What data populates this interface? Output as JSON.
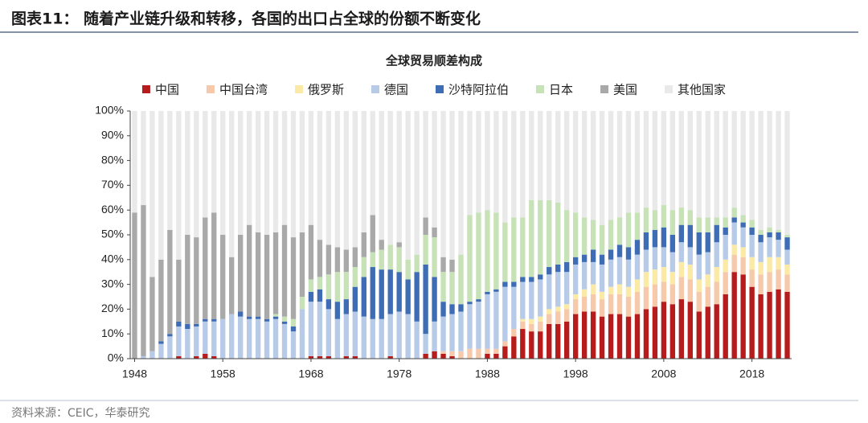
{
  "figure_title": "图表11：  随着产业链升级和转移，各国的出口占全球的份额不断变化",
  "source": "资料来源：CEIC，华泰研究",
  "chart_data": {
    "type": "stacked-bar",
    "title": "全球贸易顺差构成",
    "x": [
      1948,
      1949,
      1950,
      1951,
      1952,
      1953,
      1954,
      1955,
      1956,
      1957,
      1958,
      1959,
      1960,
      1961,
      1962,
      1963,
      1964,
      1965,
      1966,
      1967,
      1968,
      1969,
      1970,
      1971,
      1972,
      1973,
      1974,
      1975,
      1976,
      1977,
      1978,
      1979,
      1980,
      1981,
      1982,
      1983,
      1984,
      1985,
      1986,
      1987,
      1988,
      1989,
      1990,
      1991,
      1992,
      1993,
      1994,
      1995,
      1996,
      1997,
      1998,
      1999,
      2000,
      2001,
      2002,
      2003,
      2004,
      2005,
      2006,
      2007,
      2008,
      2009,
      2010,
      2011,
      2012,
      2013,
      2014,
      2015,
      2016,
      2017,
      2018,
      2019,
      2020,
      2021,
      2022
    ],
    "xlim": [
      1947.5,
      2022.5
    ],
    "xticks": [
      1948,
      1958,
      1968,
      1978,
      1988,
      1998,
      2008,
      2018
    ],
    "ylim": [
      0,
      100
    ],
    "yticks": [
      {
        "value": 0,
        "label": "0%"
      },
      {
        "value": 10,
        "label": "10%"
      },
      {
        "value": 20,
        "label": "20%"
      },
      {
        "value": 30,
        "label": "30%"
      },
      {
        "value": 40,
        "label": "40%"
      },
      {
        "value": 50,
        "label": "50%"
      },
      {
        "value": 60,
        "label": "60%"
      },
      {
        "value": 70,
        "label": "70%"
      },
      {
        "value": 80,
        "label": "80%"
      },
      {
        "value": 90,
        "label": "90%"
      },
      {
        "value": 100,
        "label": "100%"
      }
    ],
    "series": [
      {
        "name": "中国",
        "color": "#b71c1c",
        "values": [
          0,
          0,
          0,
          0,
          0,
          1,
          0,
          1,
          2,
          1,
          0,
          0,
          0,
          0,
          0,
          0,
          0,
          0,
          0,
          0,
          1,
          1,
          1,
          0,
          1,
          1,
          0,
          0,
          0,
          1,
          0,
          0,
          0,
          2,
          3,
          2,
          1,
          0,
          0,
          0,
          2,
          2,
          5,
          9,
          12,
          11,
          11,
          14,
          14,
          15,
          18,
          19,
          19,
          17,
          18,
          18,
          17,
          18,
          20,
          21,
          23,
          22,
          24,
          23,
          19,
          21,
          22,
          26,
          35,
          34,
          29,
          26,
          27,
          28,
          27
        ]
      },
      {
        "name": "中国台湾",
        "color": "#f6c9ab",
        "values": [
          0,
          0,
          0,
          0,
          0,
          0,
          0,
          0,
          0,
          0,
          0,
          0,
          0,
          0,
          0,
          0,
          0,
          0,
          0,
          0,
          0,
          0,
          0,
          0,
          0,
          0,
          0,
          0,
          0,
          0,
          0,
          0,
          0,
          0,
          0,
          1,
          2,
          3,
          4,
          4,
          2,
          2,
          2,
          3,
          3,
          3,
          4,
          4,
          5,
          5,
          6,
          6,
          7,
          7,
          8,
          8,
          8,
          9,
          9,
          9,
          8,
          8,
          9,
          9,
          8,
          8,
          9,
          9,
          7,
          7,
          7,
          8,
          8,
          8,
          7
        ]
      },
      {
        "name": "俄罗斯",
        "color": "#fbe9a6",
        "values": [
          0,
          0,
          0,
          0,
          0,
          0,
          0,
          0,
          0,
          0,
          0,
          0,
          0,
          0,
          0,
          0,
          0,
          0,
          0,
          0,
          0,
          0,
          0,
          0,
          0,
          0,
          0,
          0,
          0,
          0,
          0,
          0,
          0,
          0,
          0,
          0,
          0,
          0,
          0,
          0,
          0,
          0,
          0,
          0,
          1,
          2,
          2,
          2,
          2,
          2,
          2,
          3,
          4,
          3,
          3,
          4,
          4,
          5,
          6,
          6,
          6,
          5,
          6,
          6,
          5,
          5,
          6,
          5,
          4,
          4,
          5,
          5,
          6,
          5,
          4
        ]
      },
      {
        "name": "德国",
        "color": "#b7cbe8",
        "values": [
          0,
          1,
          3,
          6,
          9,
          12,
          12,
          12,
          13,
          14,
          16,
          18,
          17,
          16,
          16,
          15,
          16,
          14,
          11,
          20,
          22,
          22,
          19,
          16,
          17,
          18,
          17,
          16,
          16,
          17,
          19,
          18,
          15,
          8,
          12,
          14,
          15,
          16,
          18,
          19,
          22,
          23,
          22,
          17,
          15,
          15,
          15,
          14,
          14,
          13,
          12,
          11,
          9,
          11,
          11,
          11,
          11,
          10,
          9,
          9,
          8,
          8,
          8,
          7,
          10,
          9,
          10,
          10,
          9,
          8,
          9,
          8,
          8,
          7,
          6
        ]
      },
      {
        "name": "沙特阿拉伯",
        "color": "#3f6db5",
        "values": [
          0,
          0,
          0,
          1,
          1,
          2,
          2,
          1,
          1,
          1,
          0,
          0,
          2,
          1,
          1,
          1,
          1,
          1,
          2,
          0,
          4,
          5,
          4,
          7,
          6,
          10,
          16,
          21,
          20,
          18,
          16,
          14,
          20,
          28,
          18,
          6,
          4,
          3,
          1,
          1,
          1,
          1,
          2,
          2,
          2,
          2,
          2,
          3,
          3,
          4,
          3,
          3,
          5,
          4,
          4,
          5,
          5,
          6,
          7,
          7,
          8,
          7,
          7,
          9,
          9,
          8,
          7,
          3,
          2,
          2,
          3,
          3,
          2,
          3,
          5
        ]
      },
      {
        "name": "日本",
        "color": "#c6e2b6",
        "values": [
          0,
          0,
          0,
          0,
          0,
          0,
          0,
          0,
          0,
          0,
          0,
          0,
          0,
          0,
          0,
          0,
          1,
          2,
          3,
          5,
          5,
          5,
          10,
          12,
          11,
          8,
          8,
          6,
          8,
          10,
          10,
          8,
          7,
          12,
          16,
          12,
          13,
          20,
          35,
          35,
          33,
          31,
          24,
          26,
          24,
          31,
          30,
          27,
          25,
          21,
          18,
          15,
          12,
          12,
          12,
          11,
          14,
          11,
          10,
          8,
          9,
          10,
          7,
          6,
          6,
          6,
          3,
          4,
          4,
          3,
          3,
          2,
          2,
          1,
          1
        ]
      },
      {
        "name": "美国",
        "color": "#a9a9a9",
        "values": [
          59,
          61,
          30,
          33,
          42,
          25,
          36,
          35,
          41,
          43,
          34,
          23,
          31,
          37,
          34,
          34,
          33,
          37,
          33,
          26,
          22,
          15,
          12,
          10,
          9,
          8,
          10,
          15,
          4,
          0,
          2,
          0,
          0,
          7,
          4,
          6,
          5,
          0,
          0,
          0,
          0,
          0,
          0,
          0,
          0,
          0,
          0,
          0,
          0,
          0,
          0,
          0,
          0,
          0,
          0,
          0,
          0,
          0,
          0,
          0,
          0,
          0,
          0,
          0,
          0,
          0,
          0,
          0,
          0,
          0,
          0,
          0,
          0,
          0,
          0
        ]
      },
      {
        "name": "其他国家",
        "color": "#e9e9e9",
        "values": [
          41,
          38,
          67,
          60,
          48,
          60,
          50,
          51,
          43,
          41,
          50,
          59,
          50,
          46,
          49,
          50,
          49,
          46,
          51,
          49,
          46,
          52,
          54,
          55,
          56,
          55,
          49,
          42,
          52,
          54,
          53,
          60,
          58,
          43,
          47,
          59,
          60,
          58,
          42,
          41,
          40,
          41,
          45,
          43,
          43,
          36,
          36,
          36,
          37,
          40,
          41,
          43,
          44,
          46,
          44,
          43,
          41,
          41,
          39,
          40,
          38,
          40,
          39,
          40,
          43,
          43,
          43,
          43,
          39,
          42,
          44,
          48,
          47,
          48,
          50
        ]
      }
    ]
  }
}
